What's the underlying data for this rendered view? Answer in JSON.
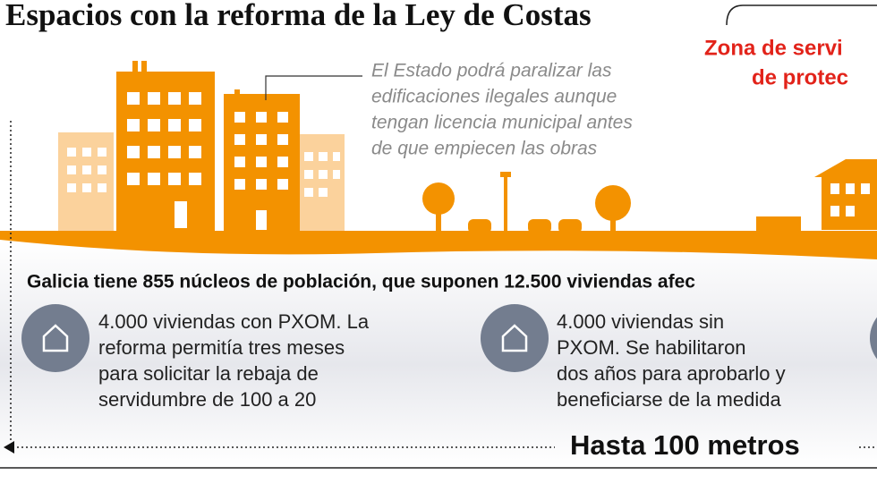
{
  "header": {
    "title": "Espacios con la reforma de la Ley de Costas",
    "zone_label": [
      "Zona de servi",
      "de protec"
    ]
  },
  "annotation": {
    "lines": [
      "El Estado podrá paralizar las",
      "edificaciones ilegales aunque",
      "tengan licencia municipal antes",
      "de que empiecen las obras"
    ]
  },
  "summary": "Galicia tiene 855 núcleos de población, que suponen 12.500 viviendas afec",
  "items": [
    {
      "lines": [
        "4.000 viviendas con PXOM. La",
        "reforma permitía tres meses",
        "para solicitar la rebaja de",
        "servidumbre de 100 a 20"
      ]
    },
    {
      "lines": [
        "4.000 viviendas sin",
        "PXOM. Se habilitaron",
        "dos años para aprobarlo y",
        "beneficiarse de la medida"
      ]
    }
  ],
  "distance_label": "Hasta 100 metros"
}
